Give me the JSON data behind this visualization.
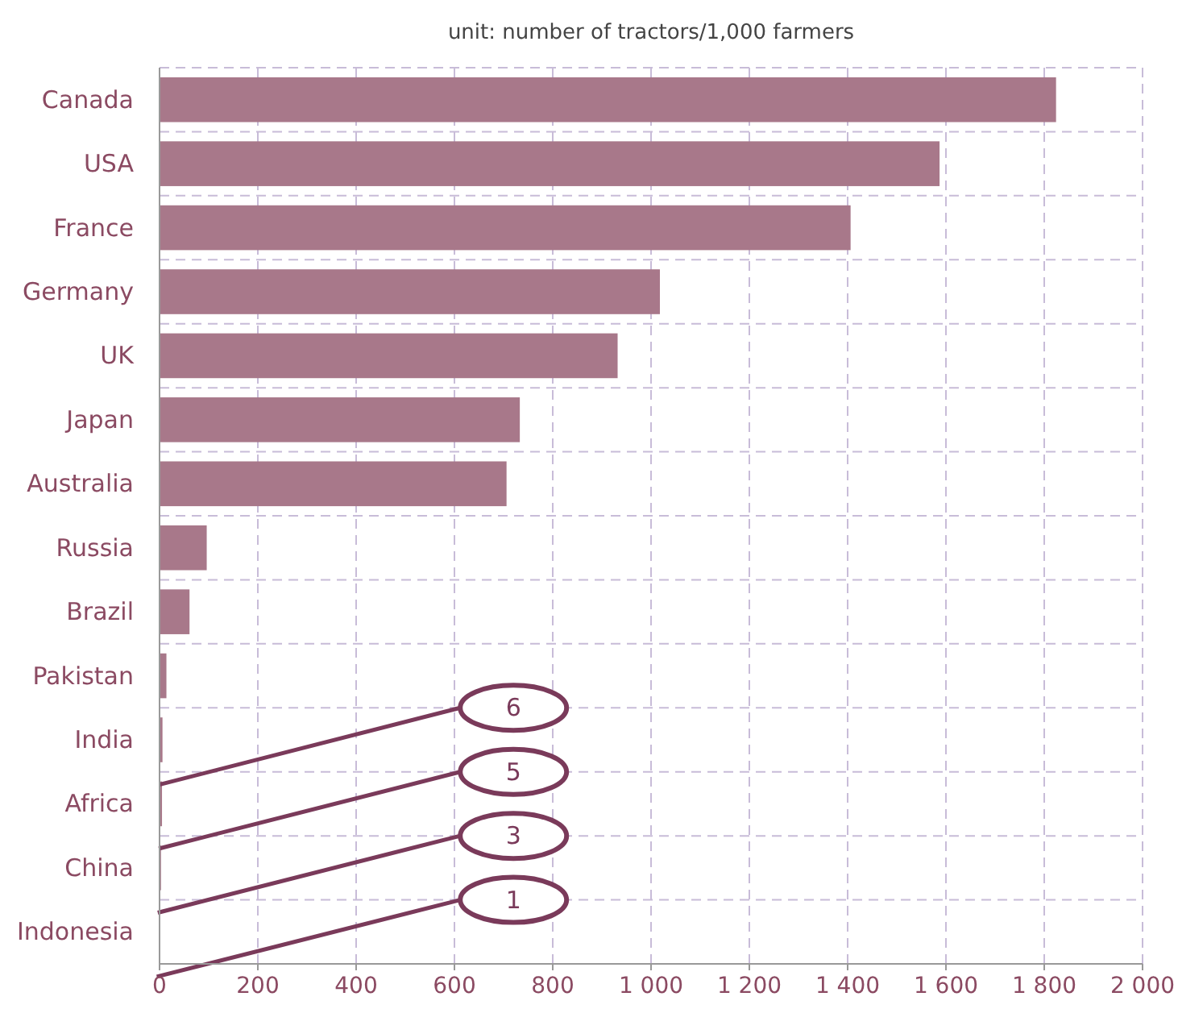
{
  "chart_data": {
    "type": "bar",
    "orientation": "horizontal",
    "title": "unit: number of tractors/1,000 farmers",
    "categories": [
      "Canada",
      "USA",
      "France",
      "Germany",
      "UK",
      "Japan",
      "Australia",
      "Russia",
      "Brazil",
      "Pakistan",
      "India",
      "Africa",
      "China",
      "Indonesia"
    ],
    "values": [
      1824,
      1587,
      1406,
      1018,
      932,
      733,
      706,
      96,
      61,
      14,
      6,
      5,
      3,
      1
    ],
    "value_labels": [
      null,
      null,
      null,
      null,
      null,
      null,
      null,
      null,
      null,
      null,
      "6",
      "5",
      "3",
      "1"
    ],
    "color": "#a8788a",
    "xlim": [
      0,
      2000
    ],
    "xticks": [
      0,
      200,
      400,
      600,
      800,
      {
        "value": 1000,
        "label": "1 000"
      },
      {
        "value": 1200,
        "label": "1 200"
      },
      {
        "value": 1400,
        "label": "1 400"
      },
      {
        "value": 1600,
        "label": "1 600"
      },
      {
        "value": 1800,
        "label": "1 800"
      },
      {
        "value": 2000,
        "label": "2 000"
      }
    ],
    "grid": true
  }
}
